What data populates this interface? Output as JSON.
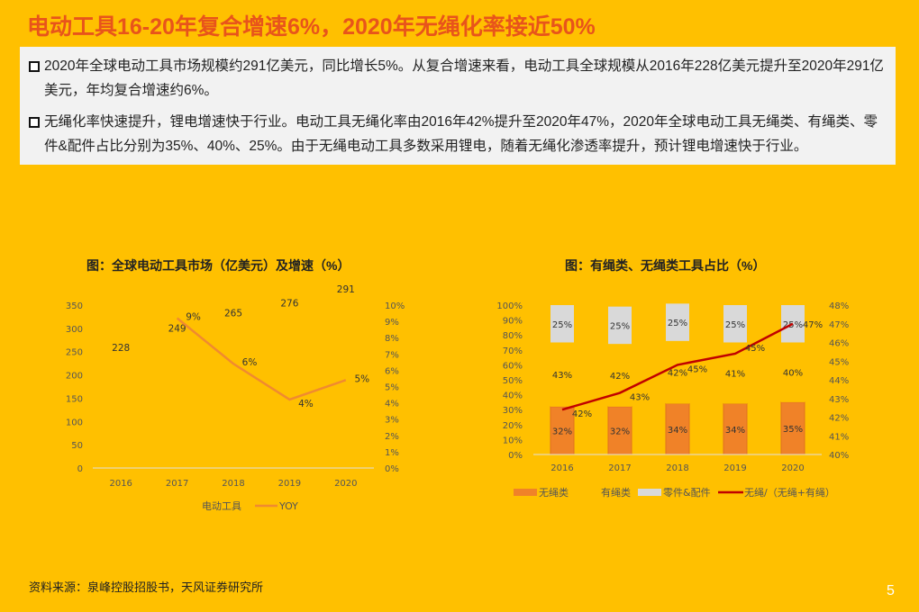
{
  "title": "电动工具16-20年复合增速6%，2020年无绳化率接近50%",
  "bullets": [
    "2020年全球电动工具市场规模约291亿美元，同比增长5%。从复合增速来看，电动工具全球规模从2016年228亿美元提升至2020年291亿美元，年均复合增速约6%。",
    "无绳化率快速提升，锂电增速快于行业。电动工具无绳化率由2016年42%提升至2020年47%，2020年全球电动工具无绳类、有绳类、零件&配件占比分别为35%、40%、25%。由于无绳电动工具多数采用锂电，随着无绳化渗透率提升，预计锂电增速快于行业。"
  ],
  "source": "资料来源：泉峰控股招股书，天风证券研究所",
  "page_number": "5",
  "colors": {
    "background": "#FFC000",
    "title": "#E8541B",
    "yoy_line": "#F08A30",
    "cordless_bar": "#F08228",
    "accessory_bar": "#D9D9D9",
    "cordless_rate_line": "#C00000"
  },
  "chart_data": [
    {
      "type": "bar+line",
      "title": "图：全球电动工具市场（亿美元）及增速（%）",
      "categories": [
        "2016",
        "2017",
        "2018",
        "2019",
        "2020"
      ],
      "series": [
        {
          "name": "电动工具",
          "type": "bar",
          "axis": "left",
          "values": [
            228,
            249,
            265,
            276,
            291
          ],
          "labels": [
            "228",
            "249",
            "265",
            "276",
            "291"
          ]
        },
        {
          "name": "YOY",
          "type": "line",
          "axis": "right",
          "values": [
            null,
            9.2,
            6.4,
            4.2,
            5.4
          ],
          "labels": [
            "",
            "9%",
            "6%",
            "4%",
            "5%"
          ]
        }
      ],
      "ylim_left": [
        0,
        350
      ],
      "yticks_left": [
        "0",
        "50",
        "100",
        "150",
        "200",
        "250",
        "300",
        "350"
      ],
      "ylim_right": [
        0,
        10
      ],
      "yticks_right": [
        "0%",
        "1%",
        "2%",
        "3%",
        "4%",
        "5%",
        "6%",
        "7%",
        "8%",
        "9%",
        "10%"
      ],
      "legend": "bottom"
    },
    {
      "type": "stacked-bar+line",
      "title": "图：有绳类、无绳类工具占比（%）",
      "categories": [
        "2016",
        "2017",
        "2018",
        "2019",
        "2020"
      ],
      "series": [
        {
          "name": "无绳类",
          "type": "bar",
          "axis": "left",
          "values": [
            32,
            32,
            34,
            34,
            35
          ],
          "labels": [
            "32%",
            "32%",
            "34%",
            "34%",
            "35%"
          ]
        },
        {
          "name": "有绳类",
          "type": "bar",
          "axis": "left",
          "values": [
            43,
            42,
            42,
            41,
            40
          ],
          "labels": [
            "43%",
            "42%",
            "42%",
            "41%",
            "40%"
          ]
        },
        {
          "name": "零件&配件",
          "type": "bar",
          "axis": "left",
          "values": [
            25,
            25,
            25,
            25,
            25
          ],
          "labels": [
            "25%",
            "25%",
            "25%",
            "25%",
            "25%"
          ]
        },
        {
          "name": "无绳/（无绳+有绳）",
          "type": "line",
          "axis": "right",
          "values": [
            42.4,
            43.3,
            44.8,
            45.4,
            47.0
          ],
          "labels": [
            "42%",
            "43%",
            "45%",
            "45%",
            "47%"
          ]
        }
      ],
      "ylim_left": [
        0,
        100
      ],
      "yticks_left": [
        "0%",
        "10%",
        "20%",
        "30%",
        "40%",
        "50%",
        "60%",
        "70%",
        "80%",
        "90%",
        "100%"
      ],
      "ylim_right": [
        40,
        48
      ],
      "yticks_right": [
        "40%",
        "41%",
        "42%",
        "43%",
        "44%",
        "45%",
        "46%",
        "47%",
        "48%"
      ],
      "legend": "bottom"
    }
  ]
}
